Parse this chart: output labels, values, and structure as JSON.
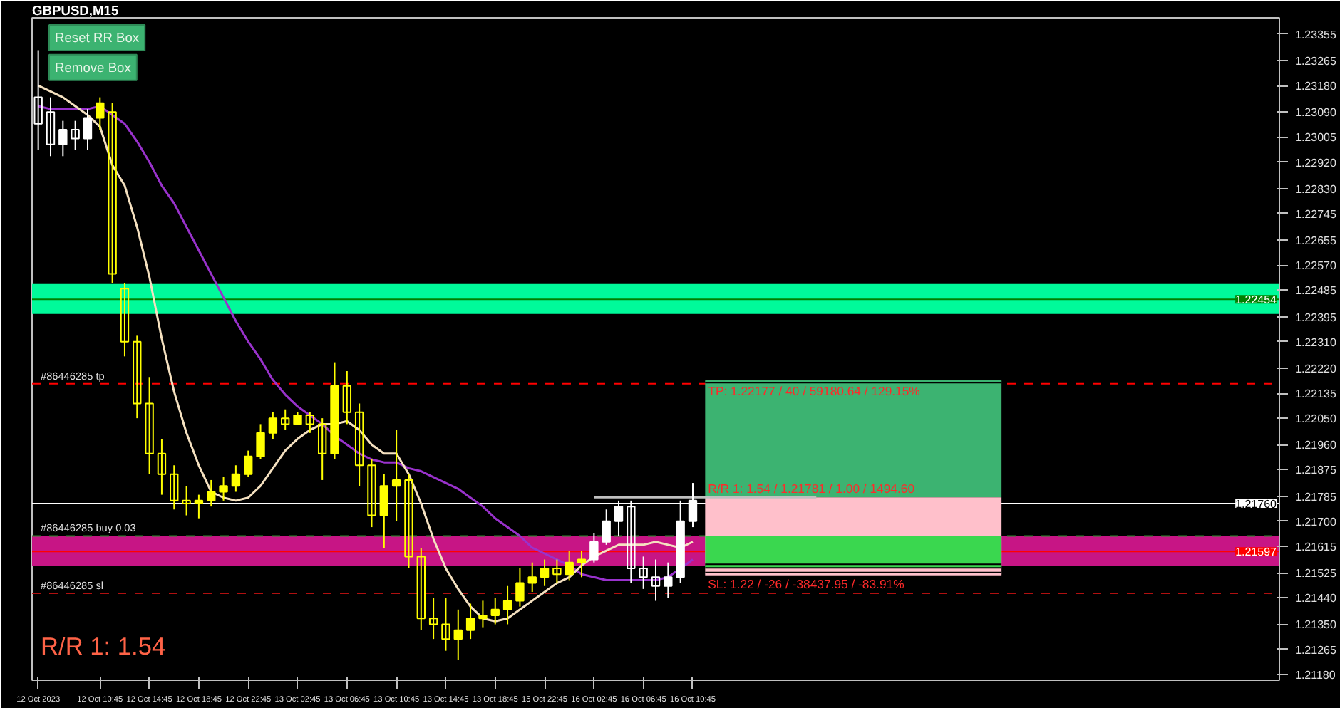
{
  "chart_data": {
    "type": "candlestick",
    "title": "GBPUSD,M15",
    "categories": [
      "12 Oct 2023",
      null,
      null,
      null,
      null,
      "12 Oct 10:45",
      null,
      null,
      null,
      "12 Oct 14:45",
      null,
      null,
      null,
      "12 Oct 18:45",
      null,
      null,
      null,
      "12 Oct 22:45",
      null,
      null,
      null,
      "13 Oct 02:45",
      null,
      null,
      null,
      "13 Oct 06:45",
      null,
      null,
      null,
      "13 Oct 10:45",
      null,
      null,
      null,
      "13 Oct 14:45",
      null,
      null,
      null,
      "13 Oct 18:45",
      null,
      null,
      null,
      "15 Oct 22:45",
      null,
      null,
      null,
      "16 Oct 02:45",
      null,
      null,
      null,
      "16 Oct 06:45",
      null,
      null,
      null,
      "16 Oct 10:45",
      null,
      null,
      null,
      null,
      null,
      null,
      null,
      null,
      null,
      null,
      null,
      null,
      null,
      null,
      null,
      null,
      null,
      null,
      null,
      null,
      null,
      null,
      null,
      null,
      null,
      null,
      null,
      null,
      null,
      null,
      null,
      null,
      null,
      null,
      null,
      null,
      null,
      null,
      null,
      null,
      null,
      null,
      null,
      null,
      null,
      null,
      null
    ],
    "ohlc": [
      [
        1.2314,
        1.233,
        1.2296,
        1.2305
      ],
      [
        1.2309,
        1.2314,
        1.2294,
        1.2298
      ],
      [
        1.2298,
        1.2306,
        1.2294,
        1.2303
      ],
      [
        1.2303,
        1.2306,
        1.2296,
        1.23
      ],
      [
        1.23,
        1.231,
        1.2296,
        1.2307
      ],
      [
        1.2307,
        1.2314,
        1.2303,
        1.2312
      ],
      [
        1.2309,
        1.2312,
        1.2251,
        1.2254
      ],
      [
        1.2249,
        1.2251,
        1.2226,
        1.2231
      ],
      [
        1.2231,
        1.2233,
        1.2205,
        1.221
      ],
      [
        1.221,
        1.2219,
        1.2186,
        1.2193
      ],
      [
        1.2193,
        1.2198,
        1.2179,
        1.2186
      ],
      [
        1.2186,
        1.2189,
        1.2174,
        1.2177
      ],
      [
        1.2177,
        1.2182,
        1.2172,
        1.2176
      ],
      [
        1.2176,
        1.2179,
        1.2171,
        1.2177
      ],
      [
        1.2177,
        1.2184,
        1.2175,
        1.218
      ],
      [
        1.218,
        1.2185,
        1.2177,
        1.2182
      ],
      [
        1.2182,
        1.2189,
        1.218,
        1.2186
      ],
      [
        1.2186,
        1.2194,
        1.2185,
        1.2192
      ],
      [
        1.2192,
        1.2203,
        1.2191,
        1.22
      ],
      [
        1.22,
        1.2207,
        1.2198,
        1.2205
      ],
      [
        1.2205,
        1.2208,
        1.2201,
        1.2203
      ],
      [
        1.2203,
        1.2207,
        1.2203,
        1.2206
      ],
      [
        1.2206,
        1.2207,
        1.22,
        1.2203
      ],
      [
        1.2203,
        1.2205,
        1.2184,
        1.2193
      ],
      [
        1.2193,
        1.2224,
        1.2191,
        1.2216
      ],
      [
        1.2216,
        1.2221,
        1.2203,
        1.2207
      ],
      [
        1.2207,
        1.221,
        1.2182,
        1.2189
      ],
      [
        1.2189,
        1.2191,
        1.2168,
        1.2172
      ],
      [
        1.2172,
        1.2186,
        1.2161,
        1.2182
      ],
      [
        1.2182,
        1.2201,
        1.217,
        1.2184
      ],
      [
        1.2184,
        1.2186,
        1.2154,
        1.2158
      ],
      [
        1.2158,
        1.2161,
        1.2133,
        1.2137
      ],
      [
        1.2137,
        1.2144,
        1.213,
        1.2135
      ],
      [
        1.2135,
        1.2144,
        1.2126,
        1.213
      ],
      [
        1.213,
        1.214,
        1.2123,
        1.2133
      ],
      [
        1.2133,
        1.2142,
        1.213,
        1.2137
      ],
      [
        1.2137,
        1.2143,
        1.2134,
        1.2138
      ],
      [
        1.2138,
        1.2144,
        1.2135,
        1.214
      ],
      [
        1.214,
        1.2148,
        1.2135,
        1.2143
      ],
      [
        1.2143,
        1.2154,
        1.2141,
        1.2149
      ],
      [
        1.2149,
        1.2156,
        1.2146,
        1.2151
      ],
      [
        1.2151,
        1.2157,
        1.2148,
        1.2154
      ],
      [
        1.2154,
        1.2157,
        1.2149,
        1.2152
      ],
      [
        1.2152,
        1.216,
        1.215,
        1.2156
      ],
      [
        1.2156,
        1.216,
        1.2151,
        1.2157
      ],
      [
        1.2157,
        1.2166,
        1.2156,
        1.2163
      ],
      [
        1.2163,
        1.2174,
        1.2162,
        1.217
      ],
      [
        1.217,
        1.2177,
        1.2165,
        1.2175
      ],
      [
        1.2175,
        1.2177,
        1.2149,
        1.2154
      ],
      [
        1.2154,
        1.2158,
        1.2147,
        1.2151
      ],
      [
        1.2151,
        1.2157,
        1.2143,
        1.2148
      ],
      [
        1.2148,
        1.2156,
        1.2144,
        1.2151
      ],
      [
        1.2151,
        1.2177,
        1.2149,
        1.217
      ],
      [
        1.217,
        1.2183,
        1.2168,
        1.2177
      ],
      null,
      null,
      null,
      null,
      null,
      null,
      null,
      null,
      null,
      null,
      null,
      null,
      null,
      null,
      null,
      null,
      null,
      null,
      null,
      null,
      null,
      null,
      null,
      null,
      null,
      null,
      null,
      null,
      null,
      null,
      null,
      null,
      null,
      null,
      null,
      null,
      null,
      null,
      null,
      null,
      null,
      null,
      null,
      null,
      null,
      null,
      null
    ],
    "colors": [
      "#ffffff",
      "#ffffff",
      "#ffffff",
      "#ffffff",
      "#ffffff",
      "#ffff00",
      "#ffff00",
      "#ffff00",
      "#ffff00",
      "#ffff00",
      "#ffff00",
      "#ffff00",
      "#ffff00",
      "#ffff00",
      "#ffff00",
      "#ffff00",
      "#ffff00",
      "#ffff00",
      "#ffff00",
      "#ffff00",
      "#ffff00",
      "#ffff00",
      "#ffff00",
      "#ffff00",
      "#ffff00",
      "#ffff00",
      "#ffff00",
      "#ffff00",
      "#ffff00",
      "#ffff00",
      "#ffff00",
      "#ffff00",
      "#ffff00",
      "#ffff00",
      "#ffff00",
      "#ffff00",
      "#ffff00",
      "#ffff00",
      "#ffff00",
      "#ffff00",
      "#ffff00",
      "#ffff00",
      "#ffff00",
      "#ffff00",
      "#ffff00",
      "#ffffff",
      "#ffffff",
      "#ffffff",
      "#ffffff",
      "#ffffff",
      "#ffffff",
      "#ffffff",
      "#ffffff",
      "#ffffff",
      null,
      null,
      null,
      null,
      null,
      null,
      null,
      null,
      null,
      null,
      null,
      null,
      null,
      null,
      null,
      null,
      null,
      null,
      null,
      null,
      null,
      null,
      null,
      null,
      null,
      null,
      null,
      null,
      null,
      null,
      null,
      null,
      null,
      null,
      null,
      null,
      null,
      null,
      null,
      null,
      null,
      null,
      null,
      null,
      null,
      null,
      null
    ],
    "series": [
      {
        "type": "line",
        "color": "#3cb371",
        "values": [
          null,
          null,
          null,
          null,
          null,
          null,
          null,
          null,
          null,
          null,
          null,
          null,
          null,
          null,
          null,
          null,
          null,
          null,
          null,
          null,
          null,
          null,
          null,
          null,
          null,
          null,
          null,
          null,
          null,
          null,
          null,
          null,
          null,
          null,
          null,
          null,
          null,
          null,
          null,
          null,
          null,
          null,
          null,
          null,
          null,
          null,
          null,
          null,
          null,
          null,
          null,
          null,
          null,
          null,
          1.22177,
          1.22177,
          1.22177,
          1.22177,
          1.22177,
          1.22177,
          1.22177,
          1.22177,
          1.22177,
          1.22177,
          1.22177,
          1.22177,
          1.22177,
          1.22177,
          1.22177,
          1.22177,
          1.22177,
          1.22177,
          1.22177,
          1.22177,
          1.22177,
          1.22177,
          1.22177,
          1.22177,
          1.22177,
          null,
          null,
          null,
          null,
          null,
          null,
          null,
          null,
          null,
          null,
          null,
          null,
          null,
          null,
          null,
          null,
          null,
          null,
          null,
          null,
          null,
          null
        ],
        "lower": [
          null,
          null,
          null,
          null,
          null,
          null,
          null,
          null,
          null,
          null,
          null,
          null,
          null,
          null,
          null,
          null,
          null,
          null,
          null,
          null,
          null,
          null,
          null,
          null,
          null,
          null,
          null,
          null,
          null,
          null,
          null,
          null,
          null,
          null,
          null,
          null,
          null,
          null,
          null,
          null,
          null,
          null,
          null,
          null,
          null,
          null,
          null,
          null,
          null,
          null,
          null,
          null,
          null,
          null,
          1.21781,
          1.21781,
          1.21781,
          1.21781,
          1.21781,
          1.21781,
          1.21781,
          1.21781,
          1.21781,
          1.21781,
          1.21781,
          1.21781,
          1.21781,
          1.21781,
          1.21781,
          1.21781,
          1.21781,
          1.21781,
          1.21781,
          1.21781,
          1.21781,
          1.21781,
          1.21781,
          1.21781,
          1.21781,
          null,
          null,
          null,
          null,
          null,
          null,
          null,
          null,
          null,
          null,
          null,
          null,
          null,
          null,
          null,
          null,
          null,
          null,
          null,
          null,
          null,
          null
        ],
        "upper": [
          null,
          null,
          null,
          null,
          null,
          null,
          null,
          null,
          null,
          null,
          null,
          null,
          null,
          null,
          null,
          null,
          null,
          null,
          null,
          null,
          null,
          null,
          null,
          null,
          null,
          null,
          null,
          null,
          null,
          null,
          null,
          null,
          null,
          null,
          null,
          null,
          null,
          null,
          null,
          null,
          null,
          null,
          null,
          null,
          null,
          null,
          null,
          null,
          null,
          null,
          null,
          null,
          null,
          null,
          1.22177,
          1.22177,
          1.22177,
          1.22177,
          1.22177,
          1.22177,
          1.22177,
          1.22177,
          1.22177,
          1.22177,
          1.22177,
          1.22177,
          1.22177,
          1.22177,
          1.22177,
          1.22177,
          1.22177,
          1.22177,
          1.22177,
          1.22177,
          1.22177,
          1.22177,
          1.22177,
          1.22177,
          1.22177,
          null,
          null,
          null,
          null,
          null,
          null,
          null,
          null,
          null,
          null,
          null,
          null,
          null,
          null,
          null,
          null,
          null,
          null,
          null,
          null,
          null,
          null
        ]
      },
      {
        "type": "line",
        "color": "#ffc0cb",
        "values": [
          null,
          null,
          null,
          null,
          null,
          null,
          null,
          null,
          null,
          null,
          null,
          null,
          null,
          null,
          null,
          null,
          null,
          null,
          null,
          null,
          null,
          null,
          null,
          null,
          null,
          null,
          null,
          null,
          null,
          null,
          null,
          null,
          null,
          null,
          null,
          null,
          null,
          null,
          null,
          null,
          null,
          null,
          null,
          null,
          null,
          null,
          null,
          null,
          null,
          null,
          null,
          null,
          null,
          null,
          1.2152,
          1.2152,
          1.2152,
          1.2152,
          1.2152,
          1.2152,
          1.2152,
          1.2152,
          1.2152,
          1.2152,
          1.2152,
          1.2152,
          1.2152,
          1.2152,
          1.2152,
          1.2152,
          1.2152,
          1.2152,
          1.2152,
          1.2152,
          1.2152,
          1.2152,
          1.2152,
          1.2152,
          1.2152,
          null,
          null,
          null,
          null,
          null,
          null,
          null,
          null,
          null,
          null,
          null,
          null,
          null,
          null,
          null,
          null,
          null,
          null,
          null,
          null,
          null,
          null
        ],
        "lower": [
          null,
          null,
          null,
          null,
          null,
          null,
          null,
          null,
          null,
          null,
          null,
          null,
          null,
          null,
          null,
          null,
          null,
          null,
          null,
          null,
          null,
          null,
          null,
          null,
          null,
          null,
          null,
          null,
          null,
          null,
          null,
          null,
          null,
          null,
          null,
          null,
          null,
          null,
          null,
          null,
          null,
          null,
          null,
          null,
          null,
          null,
          null,
          null,
          null,
          null,
          null,
          null,
          null,
          null,
          1.2152,
          1.2152,
          1.2152,
          1.2152,
          1.2152,
          1.2152,
          1.2152,
          1.2152,
          1.2152,
          1.2152,
          1.2152,
          1.2152,
          1.2152,
          1.2152,
          1.2152,
          1.2152,
          1.2152,
          1.2152,
          1.2152,
          1.2152,
          1.2152,
          1.2152,
          1.2152,
          1.2152,
          1.2152,
          null,
          null,
          null,
          null,
          null,
          null,
          null,
          null,
          null,
          null,
          null,
          null,
          null,
          null,
          null,
          null,
          null,
          null,
          null,
          null,
          null,
          null
        ],
        "upper": [
          null,
          null,
          null,
          null,
          null,
          null,
          null,
          null,
          null,
          null,
          null,
          null,
          null,
          null,
          null,
          null,
          null,
          null,
          null,
          null,
          null,
          null,
          null,
          null,
          null,
          null,
          null,
          null,
          null,
          null,
          null,
          null,
          null,
          null,
          null,
          null,
          null,
          null,
          null,
          null,
          null,
          null,
          null,
          null,
          null,
          null,
          null,
          null,
          null,
          null,
          null,
          null,
          null,
          null,
          1.21781,
          1.21781,
          1.21781,
          1.21781,
          1.21781,
          1.21781,
          1.21781,
          1.21781,
          1.21781,
          1.21781,
          1.21781,
          1.21781,
          1.21781,
          1.21781,
          1.21781,
          1.21781,
          1.21781,
          1.21781,
          1.21781,
          1.21781,
          1.21781,
          1.21781,
          1.21781,
          1.21781,
          1.21781,
          null,
          null,
          null,
          null,
          null,
          null,
          null,
          null,
          null,
          null,
          null,
          null,
          null,
          null,
          null,
          null,
          null,
          null,
          null,
          null,
          null,
          null
        ]
      },
      {
        "type": "line",
        "color": "#3ad74f",
        "values": [
          null,
          null,
          null,
          null,
          null,
          null,
          null,
          null,
          null,
          null,
          null,
          null,
          null,
          null,
          null,
          null,
          null,
          null,
          null,
          null,
          null,
          null,
          null,
          null,
          null,
          null,
          null,
          null,
          null,
          null,
          null,
          null,
          null,
          null,
          null,
          null,
          null,
          null,
          null,
          null,
          null,
          null,
          null,
          null,
          null,
          null,
          null,
          null,
          null,
          null,
          null,
          null,
          null,
          null,
          1.21548,
          1.21548,
          1.21548,
          1.21548,
          1.21548,
          1.21548,
          1.21548,
          1.21548,
          1.21548,
          1.21548,
          1.21548,
          1.21548,
          1.21548,
          1.21548,
          1.21548,
          1.21548,
          1.21548,
          1.21548,
          1.21548,
          1.21548,
          1.21548,
          1.21548,
          1.21548,
          1.21548,
          1.21548,
          null,
          null,
          null,
          null,
          null,
          null,
          null,
          null,
          null,
          null,
          null,
          null,
          null,
          null,
          null,
          null,
          null,
          null,
          null,
          null,
          null,
          null
        ],
        "lower": [
          null,
          null,
          null,
          null,
          null,
          null,
          null,
          null,
          null,
          null,
          null,
          null,
          null,
          null,
          null,
          null,
          null,
          null,
          null,
          null,
          null,
          null,
          null,
          null,
          null,
          null,
          null,
          null,
          null,
          null,
          null,
          null,
          null,
          null,
          null,
          null,
          null,
          null,
          null,
          null,
          null,
          null,
          null,
          null,
          null,
          null,
          null,
          null,
          null,
          null,
          null,
          null,
          null,
          null,
          1.21548,
          1.21548,
          1.21548,
          1.21548,
          1.21548,
          1.21548,
          1.21548,
          1.21548,
          1.21548,
          1.21548,
          1.21548,
          1.21548,
          1.21548,
          1.21548,
          1.21548,
          1.21548,
          1.21548,
          1.21548,
          1.21548,
          1.21548,
          1.21548,
          1.21548,
          1.21548,
          1.21548,
          1.21548,
          null,
          null,
          null,
          null,
          null,
          null,
          null,
          null,
          null,
          null,
          null,
          null,
          null,
          null,
          null,
          null,
          null,
          null,
          null,
          null,
          null,
          null
        ],
        "upper": [
          null,
          null,
          null,
          null,
          null,
          null,
          null,
          null,
          null,
          null,
          null,
          null,
          null,
          null,
          null,
          null,
          null,
          null,
          null,
          null,
          null,
          null,
          null,
          null,
          null,
          null,
          null,
          null,
          null,
          null,
          null,
          null,
          null,
          null,
          null,
          null,
          null,
          null,
          null,
          null,
          null,
          null,
          null,
          null,
          null,
          null,
          null,
          null,
          null,
          null,
          null,
          null,
          null,
          null,
          1.2165,
          1.2165,
          1.2165,
          1.2165,
          1.2165,
          1.2165,
          1.2165,
          1.2165,
          1.2165,
          1.2165,
          1.2165,
          1.2165,
          1.2165,
          1.2165,
          1.2165,
          1.2165,
          1.2165,
          1.2165,
          1.2165,
          1.2165,
          1.2165,
          1.2165,
          1.2165,
          1.2165,
          1.2165,
          null,
          null,
          null,
          null,
          null,
          null,
          null,
          null,
          null,
          null,
          null,
          null,
          null,
          null,
          null,
          null,
          null,
          null,
          null,
          null,
          null,
          null
        ]
      },
      {
        "type": "line",
        "color": "#bfbfbf",
        "values": [
          null,
          null,
          null,
          null,
          null,
          null,
          null,
          null,
          null,
          null,
          null,
          null,
          null,
          null,
          null,
          null,
          null,
          null,
          null,
          null,
          null,
          null,
          null,
          null,
          null,
          null,
          null,
          null,
          null,
          null,
          null,
          null,
          null,
          null,
          null,
          null,
          null,
          null,
          null,
          null,
          null,
          null,
          null,
          null,
          null,
          1.21781,
          1.21781,
          1.21781,
          1.21781,
          1.21781,
          1.21781,
          1.21781,
          1.21781,
          1.21781,
          1.21781,
          1.21781,
          1.21781,
          1.21781,
          1.21781,
          1.21781,
          1.21781,
          1.21781,
          1.21781,
          1.21781,
          null,
          null,
          null,
          null,
          null,
          null,
          null,
          null,
          null,
          null,
          null,
          null,
          null,
          null,
          null,
          null,
          null,
          null,
          null,
          null,
          null,
          null,
          null,
          null,
          null,
          null,
          null,
          null,
          null,
          null,
          null,
          null,
          null,
          null,
          null,
          null,
          null
        ]
      },
      {
        "type": "line",
        "color": "#9932cc",
        "values": [
          1.2311,
          1.231,
          1.231,
          1.231,
          1.231,
          1.2311,
          1.2308,
          1.2305,
          1.2299,
          1.2292,
          1.2284,
          1.2278,
          1.227,
          1.2262,
          1.2254,
          1.2246,
          1.2238,
          1.2231,
          1.2225,
          1.2218,
          1.2213,
          1.2209,
          1.2206,
          1.2203,
          1.2199,
          1.2196,
          1.2193,
          1.2191,
          1.219,
          1.219,
          1.2188,
          1.2187,
          1.2185,
          1.2183,
          1.2181,
          1.2178,
          1.2175,
          1.2171,
          1.2168,
          1.2165,
          1.2161,
          1.2159,
          1.2157,
          1.2155,
          1.2152,
          1.2151,
          1.215,
          1.215,
          1.215,
          1.215,
          1.215,
          1.2151,
          1.2154,
          1.2157,
          null,
          null,
          null,
          null,
          null,
          null,
          null,
          null,
          null,
          null,
          null,
          null,
          null,
          null,
          null,
          null,
          null,
          null,
          null,
          null,
          null,
          null,
          null,
          null,
          null,
          null,
          null,
          null,
          null,
          null,
          null,
          null,
          null,
          null,
          null,
          null,
          null,
          null,
          null,
          null,
          null,
          null,
          null,
          null,
          null,
          null,
          null
        ]
      },
      {
        "type": "line",
        "color": "#f5e1c0",
        "values": [
          1.2318,
          1.2316,
          1.2314,
          1.2311,
          1.2308,
          1.2304,
          1.2291,
          1.2284,
          1.227,
          1.2253,
          1.2232,
          1.2214,
          1.22,
          1.2189,
          1.218,
          1.2178,
          1.2177,
          1.2178,
          1.2182,
          1.2188,
          1.2194,
          1.2198,
          1.2201,
          1.2203,
          1.2203,
          1.2204,
          1.2201,
          1.2196,
          1.2193,
          1.2193,
          1.2186,
          1.2176,
          1.2164,
          1.2154,
          1.2147,
          1.2141,
          1.2137,
          1.2136,
          1.2137,
          1.214,
          1.2143,
          1.2146,
          1.2149,
          1.2151,
          1.2155,
          1.2158,
          1.216,
          1.2162,
          1.2162,
          1.2162,
          1.2163,
          1.2162,
          1.2161,
          1.2163,
          null,
          null,
          null,
          null,
          null,
          null,
          null,
          null,
          null,
          null,
          null,
          null,
          null,
          null,
          null,
          null,
          null,
          null,
          null,
          null,
          null,
          null,
          null,
          null,
          null,
          null,
          null,
          null,
          null,
          null,
          null,
          null,
          null,
          null,
          null,
          null,
          null,
          null,
          null,
          null,
          null,
          null,
          null,
          null,
          null,
          null,
          null
        ]
      }
    ],
    "bands": [
      {
        "axis": "y",
        "from": 1.22404,
        "to": 1.22506,
        "color": "#00fa9a"
      },
      {
        "axis": "y",
        "from": 1.21548,
        "to": 1.2165,
        "color": "#c71585"
      }
    ],
    "ref_lines": [
      {
        "axis": "y",
        "value": 1.22454,
        "label": "1.22454",
        "color": "#008000",
        "line_style": "solid"
      },
      {
        "axis": "y",
        "value": 1.2176,
        "label": "1.21760",
        "color": "#ffffff",
        "line_style": "solid"
      },
      {
        "axis": "y",
        "value": 1.21597,
        "label": "1.21597",
        "color": "#ff0000",
        "line_style": "solid"
      },
      {
        "axis": "y",
        "value": 1.22167,
        "label": "#86446285 tp",
        "color": "#ff0000",
        "line_style": "dashed"
      },
      {
        "axis": "y",
        "value": 1.2165,
        "label": "#86446285 buy 0.03",
        "color": "#2e8b2e",
        "line_style": "dashed"
      },
      {
        "axis": "y",
        "value": 1.21455,
        "label": "#86446285 sl",
        "color": "#b01010",
        "line_style": "dashed"
      }
    ],
    "annotations": [
      "Reset RR Box",
      "Remove Box",
      "R/R  1: 1.54",
      "TP: 1.22177 / 40 / 59180.64 / 129.15%",
      "R/R  1: 1.54 / 1.21781 / 1.00 / 1494.60",
      "SL: 1.22 / -26 / -38437.95 / -83.91%"
    ],
    "ylim": [
      1.2116,
      1.2341
    ],
    "yticks": [
      {
        "value": 1.2118,
        "label": "1.21180"
      },
      {
        "value": 1.21265,
        "label": "1.21265"
      },
      {
        "value": 1.2135,
        "label": "1.21350"
      },
      {
        "value": 1.2144,
        "label": "1.21440"
      },
      {
        "value": 1.21525,
        "label": "1.21525"
      },
      {
        "value": 1.21615,
        "label": "1.21615"
      },
      {
        "value": 1.217,
        "label": "1.21700"
      },
      {
        "value": 1.21785,
        "label": "1.21785"
      },
      {
        "value": 1.21875,
        "label": "1.21875"
      },
      {
        "value": 1.2196,
        "label": "1.21960"
      },
      {
        "value": 1.2205,
        "label": "1.22050"
      },
      {
        "value": 1.22135,
        "label": "1.22135"
      },
      {
        "value": 1.2222,
        "label": "1.22220"
      },
      {
        "value": 1.2231,
        "label": "1.22310"
      },
      {
        "value": 1.22395,
        "label": "1.22395"
      },
      {
        "value": 1.22485,
        "label": "1.22485"
      },
      {
        "value": 1.2257,
        "label": "1.22570"
      },
      {
        "value": 1.22655,
        "label": "1.22655"
      },
      {
        "value": 1.22745,
        "label": "1.22745"
      },
      {
        "value": 1.2283,
        "label": "1.22830"
      },
      {
        "value": 1.2292,
        "label": "1.22920"
      },
      {
        "value": 1.23005,
        "label": "1.23005"
      },
      {
        "value": 1.2309,
        "label": "1.23090"
      },
      {
        "value": 1.2318,
        "label": "1.23180"
      },
      {
        "value": 1.23265,
        "label": "1.23265"
      },
      {
        "value": 1.23355,
        "label": "1.23355"
      }
    ]
  }
}
